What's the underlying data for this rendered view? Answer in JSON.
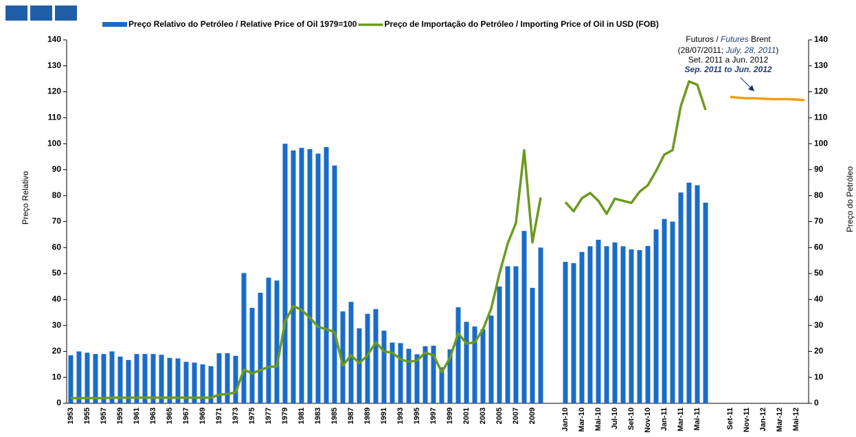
{
  "chart_data": {
    "type": "bar_line",
    "legend": "top",
    "y_label": "Preço Relativo",
    "y2_label": "Preço do Petróleo",
    "annotation": [
      [
        "Futuros / ",
        "Futures",
        " Brent"
      ],
      [
        "(28/07/2011;  ",
        "July, 28, 2011",
        ")"
      ],
      [
        "Set. 2011  a Jun. 2012"
      ],
      [
        "Sep. 2011 to Jun. 2012"
      ]
    ],
    "categories": [
      "1953",
      null,
      "1955",
      null,
      "1957",
      null,
      "1959",
      null,
      "1961",
      null,
      "1963",
      null,
      "1965",
      null,
      "1967",
      null,
      "1969",
      null,
      "1971",
      null,
      "1973",
      null,
      "1975",
      null,
      "1977",
      null,
      "1979",
      null,
      "1981",
      null,
      "1983",
      null,
      "1985",
      null,
      "1987",
      null,
      "1989",
      null,
      "1991",
      null,
      "1993",
      null,
      "1995",
      null,
      "1997",
      null,
      "1999",
      null,
      "2001",
      null,
      "2003",
      null,
      "2005",
      null,
      "2007",
      null,
      "2009",
      null,
      null,
      null,
      "Jan-10",
      null,
      "Mar-10",
      null,
      "Mai-10",
      null,
      "Jul-10",
      null,
      "Set-10",
      null,
      "Nov-10",
      null,
      "Jan-11",
      null,
      "Mar-11",
      null,
      "Mai-11",
      null,
      null,
      null,
      "Set-11",
      null,
      "Nov-11",
      null,
      "Jan-12",
      null,
      "Mar-12",
      null,
      "Mai-12",
      null
    ],
    "series": [
      {
        "name": "Preço Relativo do Petróleo / Relative Price of Oil 1979=100",
        "kind": "bar",
        "color": "#1a6cc8",
        "values": [
          18.5,
          20,
          19.5,
          19,
          19,
          20,
          18,
          16.7,
          19,
          19,
          19,
          18.7,
          17.5,
          17.3,
          16,
          15.7,
          15,
          14.3,
          19.3,
          19.3,
          18.3,
          50.2,
          36.8,
          42.6,
          48.4,
          47.3,
          100,
          97.4,
          98.4,
          97.9,
          96.2,
          98.7,
          91.6,
          35.4,
          39.1,
          28.9,
          34.5,
          36.3,
          28,
          23.4,
          23.2,
          21,
          18.9,
          22,
          22.2,
          13.9,
          20.8,
          37,
          31.4,
          29.6,
          28.5,
          33.8,
          45,
          52.8,
          52.8,
          66.4,
          44.5,
          60,
          null,
          null,
          54.5,
          54,
          58.3,
          60.5,
          63,
          60.5,
          62,
          60.5,
          59.3,
          59,
          60.6,
          67,
          71,
          70,
          81.2,
          85,
          84,
          77.3,
          null,
          null,
          null,
          null,
          null,
          null,
          null,
          null,
          null,
          null,
          null,
          null
        ]
      },
      {
        "name": "Preço de Importação do Petróleo / Importing Price of Oil in USD (FOB)",
        "kind": "line",
        "axis": "y2",
        "color": "#6b9a1e",
        "values": [
          2,
          2,
          2,
          2,
          2,
          2.2,
          2.2,
          2.2,
          2.2,
          2.2,
          2.2,
          2.2,
          2.2,
          2.2,
          2.2,
          2.2,
          2.2,
          2.2,
          3.3,
          3.6,
          4.2,
          13,
          11.5,
          12.8,
          14,
          14.2,
          31.5,
          37.5,
          36,
          33,
          29.5,
          28.5,
          27.5,
          14.5,
          18.5,
          15.5,
          18.5,
          23.5,
          20,
          19.5,
          17,
          16,
          16.5,
          19.5,
          18.5,
          12,
          17.5,
          27,
          23,
          23.5,
          28.5,
          36.5,
          50,
          61.5,
          69.5,
          97.5,
          62,
          79.3,
          null,
          null,
          77.5,
          74,
          79,
          81,
          78,
          73,
          78.8,
          78,
          77.2,
          81.5,
          84,
          89.5,
          95.8,
          97.5,
          114.5,
          124,
          122.7,
          113,
          null,
          null,
          null,
          null,
          null,
          null,
          null,
          null,
          null,
          null,
          null,
          null
        ]
      },
      {
        "kind": "line",
        "axis": "y2",
        "color": "#f39c12",
        "values": [
          null,
          null,
          null,
          null,
          null,
          null,
          null,
          null,
          null,
          null,
          null,
          null,
          null,
          null,
          null,
          null,
          null,
          null,
          null,
          null,
          null,
          null,
          null,
          null,
          null,
          null,
          null,
          null,
          null,
          null,
          null,
          null,
          null,
          null,
          null,
          null,
          null,
          null,
          null,
          null,
          null,
          null,
          null,
          null,
          null,
          null,
          null,
          null,
          null,
          null,
          null,
          null,
          null,
          null,
          null,
          null,
          null,
          null,
          null,
          null,
          null,
          null,
          null,
          null,
          null,
          null,
          null,
          null,
          null,
          null,
          null,
          null,
          null,
          null,
          null,
          null,
          null,
          null,
          null,
          null,
          118,
          117.7,
          117.5,
          117.5,
          117.3,
          117.2,
          117.2,
          117.2,
          117,
          116.8
        ]
      }
    ],
    "ylim": [
      0,
      140
    ],
    "yticks": [
      0,
      10,
      20,
      30,
      40,
      50,
      60,
      70,
      80,
      90,
      100,
      110,
      120,
      130,
      140
    ],
    "y2lim": [
      0,
      140
    ],
    "y2ticks": [
      0,
      10,
      20,
      30,
      40,
      50,
      60,
      70,
      80,
      90,
      100,
      110,
      120,
      130,
      140
    ]
  }
}
